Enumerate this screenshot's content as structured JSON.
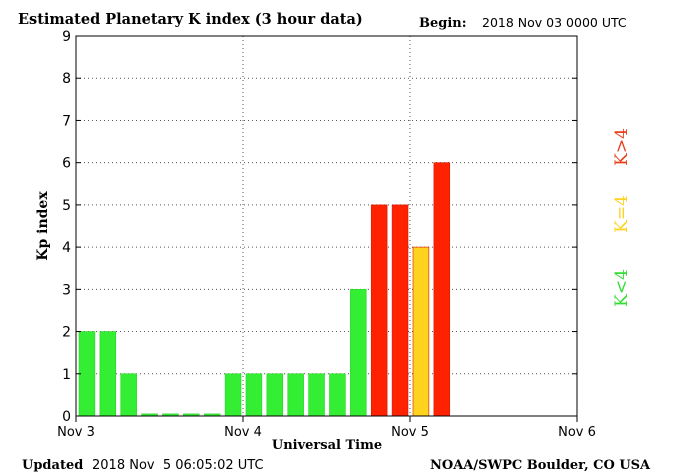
{
  "header": {
    "title": "Estimated Planetary K index (3 hour data)",
    "begin_label": "Begin:",
    "begin_value": "2018 Nov 03 0000 UTC"
  },
  "footer": {
    "updated_label": "Updated",
    "updated_value": "2018 Nov  5 06:05:02 UTC",
    "credit": "NOAA/SWPC Boulder, CO USA"
  },
  "legend": {
    "greater": "K>4",
    "equal": "K=4",
    "less": "K<4"
  },
  "colors": {
    "green": "#33ee33",
    "yellow": "#ffd21e",
    "red": "#ff2200"
  },
  "chart_data": {
    "type": "bar",
    "xlabel": "Universal Time",
    "ylabel": "Kp index",
    "ylim": [
      0,
      9
    ],
    "y_ticks": [
      "0",
      "1",
      "2",
      "3",
      "4",
      "5",
      "6",
      "7",
      "8",
      "9"
    ],
    "x_ticks": [
      "Nov 3",
      "Nov 4",
      "Nov 5",
      "Nov 6"
    ],
    "days_span": 3,
    "bars_per_day": 8,
    "values": [
      2,
      2,
      1,
      0.05,
      0.05,
      0.05,
      0.05,
      1,
      1,
      1,
      1,
      1,
      1,
      3,
      5,
      5,
      4,
      6
    ],
    "grid": "dotted at each day boundary and each Kp level"
  }
}
